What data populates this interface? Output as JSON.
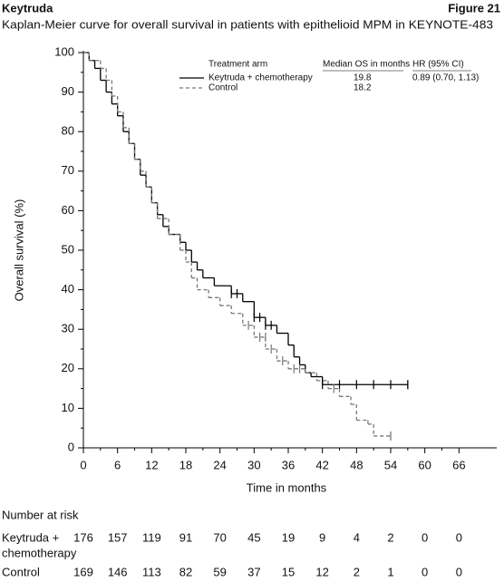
{
  "chart_data": {
    "type": "km",
    "product": "Keytruda",
    "figure": "Figure 21",
    "title": "Kaplan-Meier curve for overall survival in patients with epithelioid MPM in KEYNOTE-483",
    "x_label": "Time in months",
    "y_label": "Overall survival (%)",
    "xlim": [
      0,
      72
    ],
    "ylim": [
      0,
      100
    ],
    "xticks": [
      0,
      6,
      12,
      18,
      24,
      30,
      36,
      42,
      48,
      54,
      60,
      66
    ],
    "yticks": [
      0,
      10,
      20,
      30,
      40,
      50,
      60,
      70,
      80,
      90,
      100
    ],
    "legend_headers": [
      "Treatment arm",
      "Median OS in months",
      "HR (95% CI)"
    ],
    "series": [
      {
        "name": "Keytruda + chemotherapy",
        "color": "#000000",
        "dash": false,
        "median_os": 19.8,
        "hr": "0.89 (0.70, 1.13)",
        "x": [
          0,
          1,
          2,
          3,
          4,
          5,
          6,
          7,
          8,
          9,
          10,
          11,
          12,
          13,
          14,
          15,
          17,
          18,
          19,
          20,
          21,
          23,
          26,
          28,
          30,
          32,
          34,
          36,
          37,
          38,
          39,
          40,
          42,
          57
        ],
        "values": [
          100,
          98,
          96,
          93,
          90,
          87,
          84,
          80,
          77,
          73,
          69,
          66,
          62,
          59,
          56,
          54,
          52,
          50,
          47,
          45,
          43,
          41,
          39,
          37,
          33,
          31,
          29,
          26,
          23,
          21,
          19,
          18,
          16,
          16
        ],
        "censored": {
          "x": [
            26,
            27,
            30,
            31,
            32,
            33,
            42,
            45,
            48,
            51,
            54
          ],
          "y": [
            39,
            39,
            33,
            33,
            31,
            31,
            16,
            16,
            16,
            16,
            16
          ]
        }
      },
      {
        "name": "Control",
        "color": "#777777",
        "dash": true,
        "median_os": 18.2,
        "x": [
          0,
          1,
          3,
          4,
          5,
          6,
          7,
          8,
          9,
          10,
          11,
          12,
          13,
          15,
          17,
          18,
          19,
          20,
          22,
          24,
          26,
          28,
          30,
          32,
          34,
          36,
          39,
          41,
          43,
          45,
          47,
          48,
          50,
          51,
          54
        ],
        "values": [
          100,
          98,
          96,
          93,
          89,
          85,
          81,
          77,
          73,
          70,
          66,
          62,
          58,
          54,
          50,
          47,
          43,
          40,
          38,
          36,
          34,
          31,
          28,
          25,
          22,
          20,
          19,
          17,
          15,
          13,
          11,
          7,
          6,
          3,
          3
        ],
        "censored": {
          "x": [
            29,
            31,
            32,
            33,
            35,
            37,
            38,
            44
          ],
          "y": [
            31,
            28,
            28,
            25,
            22,
            20,
            20,
            15
          ]
        }
      }
    ],
    "risk_table": {
      "title": "Number at risk",
      "rows": [
        {
          "label": [
            "Keytruda +",
            "chemotherapy"
          ],
          "values": [
            176,
            157,
            119,
            91,
            70,
            45,
            19,
            9,
            4,
            2,
            0,
            0
          ]
        },
        {
          "label": [
            "Control"
          ],
          "values": [
            169,
            146,
            113,
            82,
            59,
            37,
            15,
            12,
            2,
            1,
            0,
            0
          ]
        }
      ]
    }
  }
}
